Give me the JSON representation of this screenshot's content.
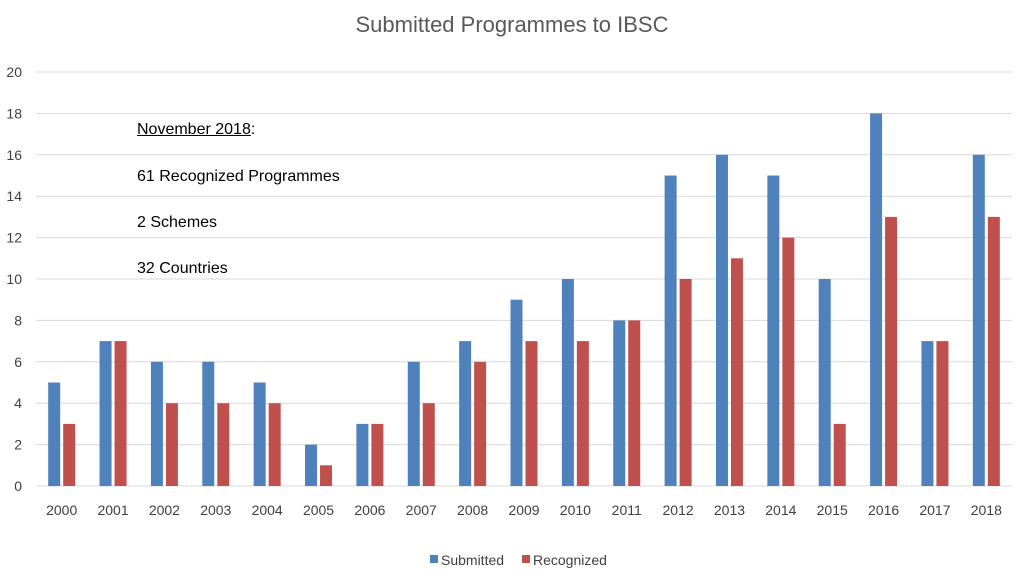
{
  "chart_data": {
    "type": "bar",
    "title": "Submitted Programmes to IBSC",
    "categories": [
      "2000",
      "2001",
      "2002",
      "2003",
      "2004",
      "2005",
      "2006",
      "2007",
      "2008",
      "2009",
      "2010",
      "2011",
      "2012",
      "2013",
      "2014",
      "2015",
      "2016",
      "2017",
      "2018"
    ],
    "series": [
      {
        "name": "Submitted",
        "color": "#4f81bd",
        "values": [
          5,
          7,
          6,
          6,
          5,
          2,
          3,
          6,
          7,
          9,
          10,
          8,
          15,
          16,
          15,
          10,
          18,
          7,
          16
        ]
      },
      {
        "name": "Recognized",
        "color": "#c0504d",
        "values": [
          3,
          7,
          4,
          4,
          4,
          1,
          3,
          4,
          6,
          7,
          7,
          8,
          10,
          11,
          12,
          3,
          13,
          7,
          13
        ]
      }
    ],
    "ylim": [
      0,
      20
    ],
    "yticks": [
      0,
      2,
      4,
      6,
      8,
      10,
      12,
      14,
      16,
      18,
      20
    ],
    "grid": true,
    "legend_position": "bottom"
  },
  "annotation": {
    "heading": "November 2018",
    "heading_suffix": ":",
    "lines": [
      "61 Recognized Programmes",
      "2 Schemes",
      "32 Countries"
    ]
  }
}
